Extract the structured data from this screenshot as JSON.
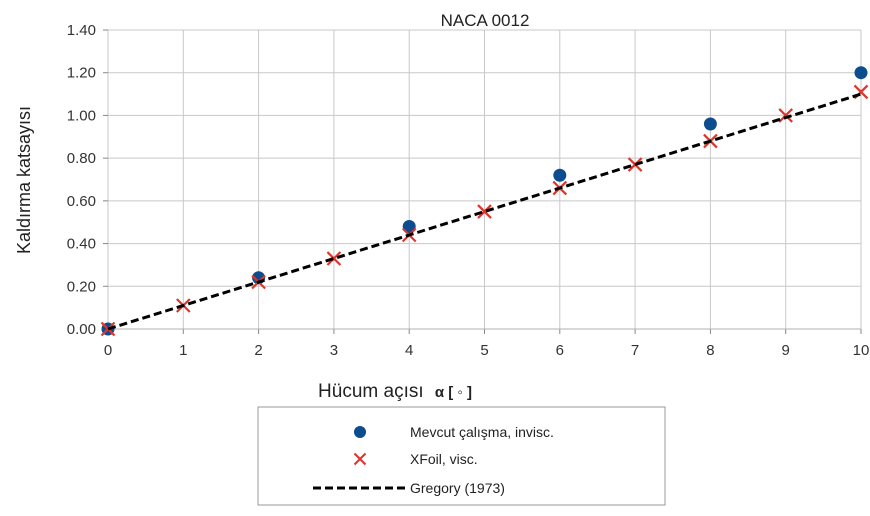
{
  "chart_data": {
    "type": "scatter",
    "title": "NACA 0012",
    "xlabel": "Hücum açısı",
    "xlabel_suffix": "α [ ◦ ]",
    "ylabel": "Kaldırma katsayısı",
    "xlim": [
      0,
      10
    ],
    "ylim": [
      0,
      1.4
    ],
    "x_ticks": [
      0,
      1,
      2,
      3,
      4,
      5,
      6,
      7,
      8,
      9,
      10
    ],
    "x_tick_labels": [
      "0",
      "1",
      "2",
      "3",
      "4",
      "5",
      "6",
      "7",
      "8",
      "9",
      "10"
    ],
    "y_ticks": [
      0,
      0.2,
      0.4,
      0.6,
      0.8,
      1.0,
      1.2,
      1.4
    ],
    "y_tick_labels": [
      "0.00",
      "0.20",
      "0.40",
      "0.60",
      "0.80",
      "1.00",
      "1.20",
      "1.40"
    ],
    "grid": true,
    "legend_position": "bottom-center",
    "series": [
      {
        "name": "Mevcut çalışma, invisc.",
        "marker": "circle",
        "color": "#0b4d8f",
        "x": [
          0,
          2,
          4,
          6,
          8,
          10
        ],
        "y": [
          0.0,
          0.24,
          0.48,
          0.72,
          0.96,
          1.2
        ]
      },
      {
        "name": "XFoil, visc.",
        "marker": "x",
        "color": "#e0342a",
        "x": [
          0,
          1,
          2,
          3,
          4,
          5,
          6,
          7,
          8,
          9,
          10
        ],
        "y": [
          0.0,
          0.11,
          0.22,
          0.33,
          0.44,
          0.55,
          0.66,
          0.77,
          0.88,
          1.0,
          1.11
        ]
      },
      {
        "name": "Gregory (1973)",
        "marker": "none",
        "line": "dashed",
        "color": "#000000",
        "x": [
          0,
          10
        ],
        "y": [
          0.0,
          1.1
        ]
      }
    ]
  }
}
